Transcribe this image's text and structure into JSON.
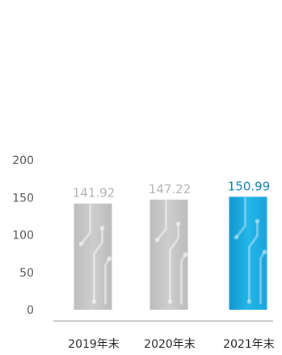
{
  "chart_data": {
    "type": "bar",
    "categories": [
      "2019年末",
      "2020年末",
      "2021年末"
    ],
    "values": [
      141.92,
      147.22,
      150.99
    ],
    "data_labels": [
      "141.92",
      "147.22",
      "150.99"
    ],
    "y_ticks": [
      0,
      50,
      100,
      150,
      200
    ],
    "ylim": [
      0,
      200
    ],
    "grid": false,
    "title": "",
    "xlabel": "",
    "ylabel": "",
    "colors": {
      "bar": "#c4c4c4",
      "highlight_bar": "#1aa6d9",
      "label": "#b3b3b3",
      "highlight_label": "#1683b0",
      "axis": "#999999"
    },
    "highlight_index": 2
  }
}
